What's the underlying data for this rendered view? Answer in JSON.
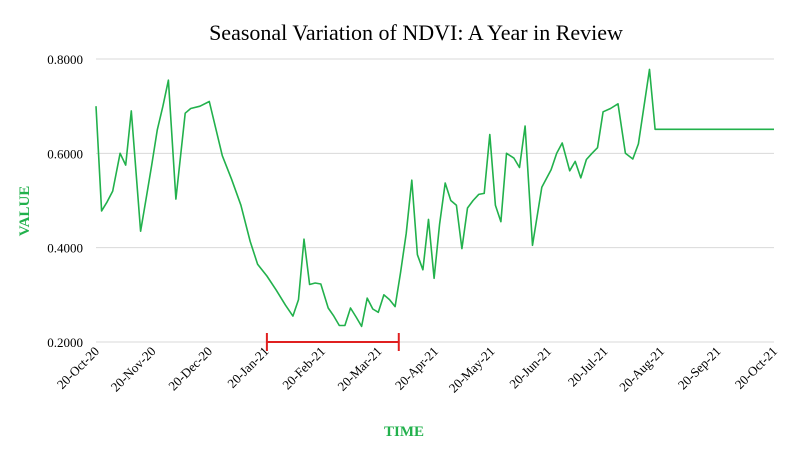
{
  "chart_data": {
    "type": "line",
    "title": "Seasonal Variation of NDVI: A Year in Review",
    "xlabel": "TIME",
    "ylabel": "VALUE",
    "ylim": [
      0.2,
      0.8
    ],
    "yticks": [
      "0.2000",
      "0.4000",
      "0.6000",
      "0.8000"
    ],
    "xlim": [
      "2020-10-20",
      "2021-10-20"
    ],
    "xticks": [
      "20-Oct-20",
      "20-Nov-20",
      "20-Dec-20",
      "20-Jan-21",
      "20-Feb-21",
      "20-Mar-21",
      "20-Apr-21",
      "20-May-21",
      "20-Jun-21",
      "20-Jul-21",
      "20-Aug-21",
      "20-Sep-21",
      "20-Oct-21"
    ],
    "grid": "horizontal",
    "colors": {
      "line": "#22b14c",
      "axis_label": "#22b14c",
      "grid": "#d9d9d9",
      "marker": "#e02020"
    },
    "series": [
      {
        "x": [
          "2020-10-20",
          "2020-10-23",
          "2020-10-26",
          "2020-10-29",
          "2020-11-02",
          "2020-11-05",
          "2020-11-08",
          "2020-11-13",
          "2020-11-16",
          "2020-11-19",
          "2020-11-22",
          "2020-11-25",
          "2020-11-28",
          "2020-12-02",
          "2020-12-07",
          "2020-12-10",
          "2020-12-15",
          "2020-12-20",
          "2020-12-27",
          "2021-01-01",
          "2021-01-06",
          "2021-01-11",
          "2021-01-15",
          "2021-01-20",
          "2021-01-25",
          "2021-01-30",
          "2021-02-03",
          "2021-02-06",
          "2021-02-09",
          "2021-02-12",
          "2021-02-15",
          "2021-02-18",
          "2021-02-22",
          "2021-02-25",
          "2021-02-28",
          "2021-03-03",
          "2021-03-06",
          "2021-03-09",
          "2021-03-12",
          "2021-03-15",
          "2021-03-18",
          "2021-03-21",
          "2021-03-24",
          "2021-03-27",
          "2021-03-30",
          "2021-04-02",
          "2021-04-05",
          "2021-04-08",
          "2021-04-11",
          "2021-04-14",
          "2021-04-17",
          "2021-04-20",
          "2021-04-23",
          "2021-04-26",
          "2021-04-29",
          "2021-05-02",
          "2021-05-05",
          "2021-05-08",
          "2021-05-11",
          "2021-05-14",
          "2021-05-17",
          "2021-05-20",
          "2021-05-23",
          "2021-05-26",
          "2021-05-29",
          "2021-06-02",
          "2021-06-05",
          "2021-06-08",
          "2021-06-12",
          "2021-06-17",
          "2021-06-22",
          "2021-06-25",
          "2021-06-28",
          "2021-07-02",
          "2021-07-05",
          "2021-07-08",
          "2021-07-11",
          "2021-07-14",
          "2021-07-17",
          "2021-07-20",
          "2021-07-24",
          "2021-07-28",
          "2021-08-01",
          "2021-08-05",
          "2021-08-08",
          "2021-08-11",
          "2021-08-14",
          "2021-08-17",
          "2021-08-20",
          "2021-08-24",
          "2021-08-28",
          "2021-09-01",
          "2021-09-05",
          "2021-09-09",
          "2021-09-14",
          "2021-09-18",
          "2021-09-22",
          "2021-09-26",
          "2021-09-30",
          "2021-10-05",
          "2021-10-09",
          "2021-10-11",
          "2021-10-15",
          "2021-10-20"
        ],
        "y": [
          0.7,
          0.478,
          0.497,
          0.52,
          0.6,
          0.575,
          0.69,
          0.435,
          0.505,
          0.575,
          0.65,
          0.7,
          0.755,
          0.503,
          0.685,
          0.695,
          0.7,
          0.71,
          0.595,
          0.545,
          0.49,
          0.413,
          0.365,
          0.34,
          0.31,
          0.278,
          0.255,
          0.29,
          0.418,
          0.322,
          0.325,
          0.323,
          0.272,
          0.255,
          0.235,
          0.235,
          0.272,
          0.253,
          0.233,
          0.293,
          0.27,
          0.263,
          0.3,
          0.29,
          0.275,
          0.348,
          0.43,
          0.543,
          0.385,
          0.353,
          0.46,
          0.335,
          0.45,
          0.537,
          0.5,
          0.49,
          0.398,
          0.484,
          0.5,
          0.513,
          0.515,
          0.64,
          0.49,
          0.455,
          0.6,
          0.59,
          0.57,
          0.658,
          0.405,
          0.528,
          0.565,
          0.6,
          0.622,
          0.563,
          0.583,
          0.548,
          0.587,
          0.6,
          0.612,
          0.688,
          0.695,
          0.705,
          0.6,
          0.588,
          0.62,
          0.7,
          0.778,
          0.651,
          0.651,
          0.651,
          0.651,
          0.651,
          0.651,
          0.651,
          0.651,
          0.651,
          0.651,
          0.651,
          0.651,
          0.651,
          0.651,
          0.651,
          0.651,
          0.651
        ]
      }
    ],
    "highlight_span": {
      "start": "2021-01-20",
      "end": "2021-04-01"
    }
  }
}
